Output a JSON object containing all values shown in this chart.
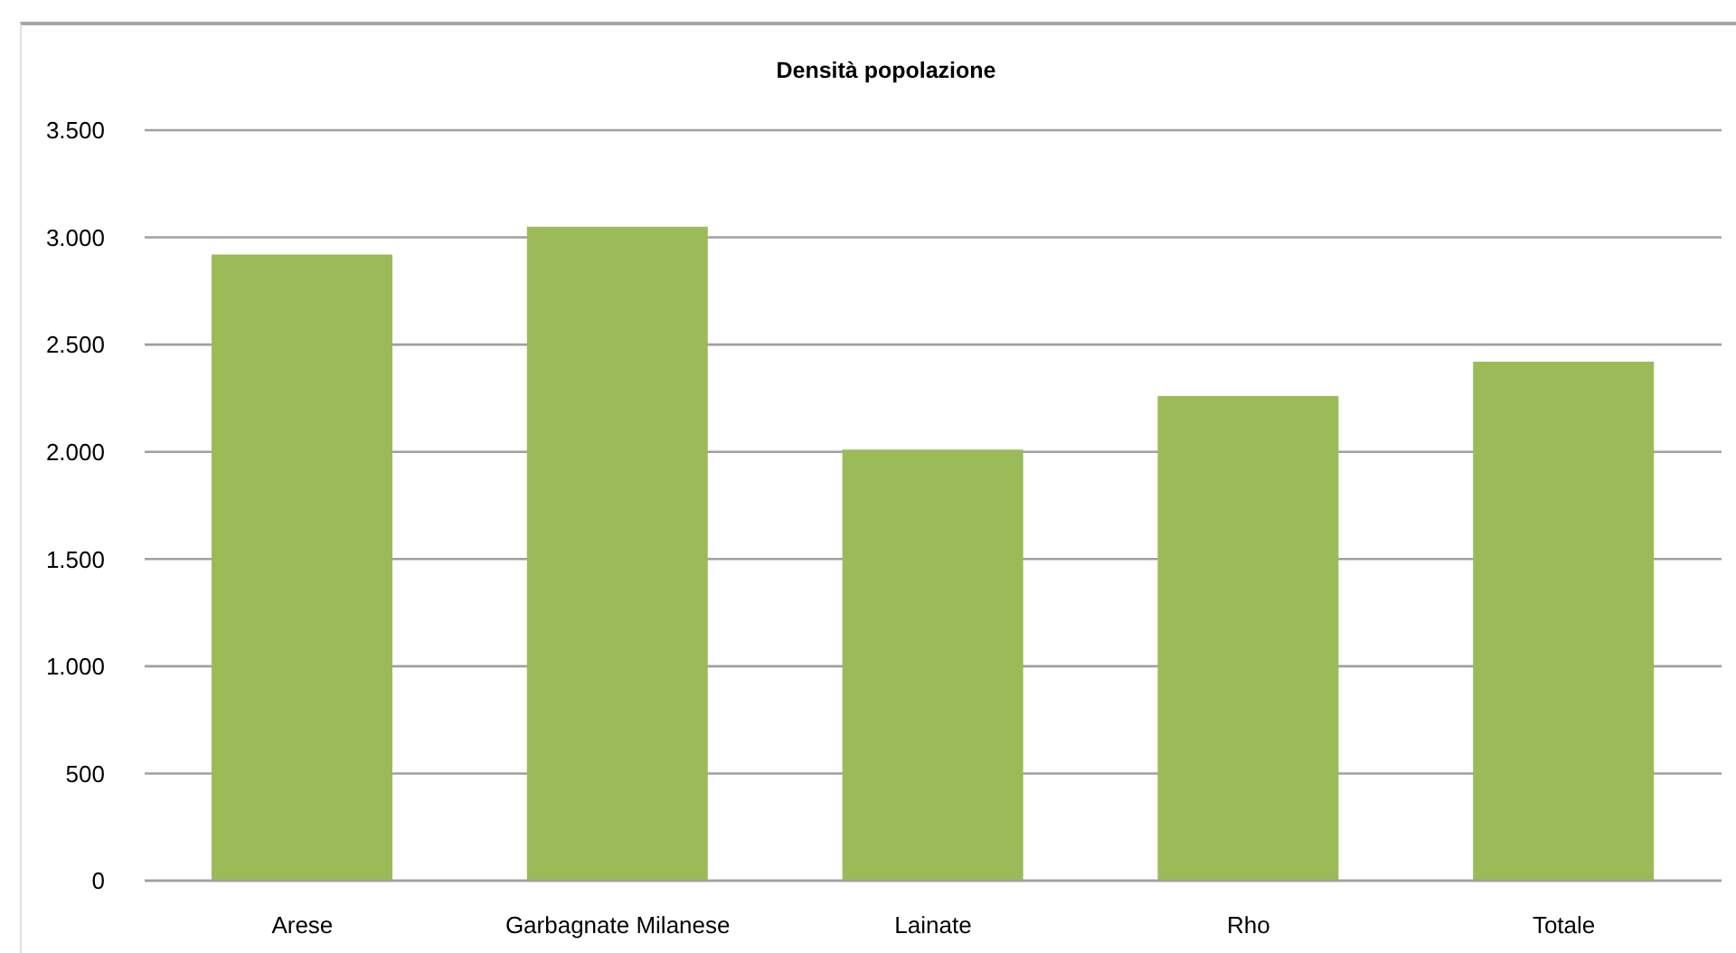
{
  "chart_data": {
    "type": "bar",
    "title": "Densità popolazione",
    "categories": [
      "Arese",
      "Garbagnate Milanese",
      "Lainate",
      "Rho",
      "Totale"
    ],
    "values": [
      2920,
      3050,
      2010,
      2260,
      2420
    ],
    "color": "#9bbb59",
    "ylim": [
      0,
      3500
    ],
    "yticks": [
      {
        "value": 0,
        "label": "0"
      },
      {
        "value": 500,
        "label": "500"
      },
      {
        "value": 1000,
        "label": "1.000"
      },
      {
        "value": 1500,
        "label": "1.500"
      },
      {
        "value": 2000,
        "label": "2.000"
      },
      {
        "value": 2500,
        "label": "2.500"
      },
      {
        "value": 3000,
        "label": "3.000"
      },
      {
        "value": 3500,
        "label": "3.500"
      }
    ],
    "grid": "y"
  }
}
